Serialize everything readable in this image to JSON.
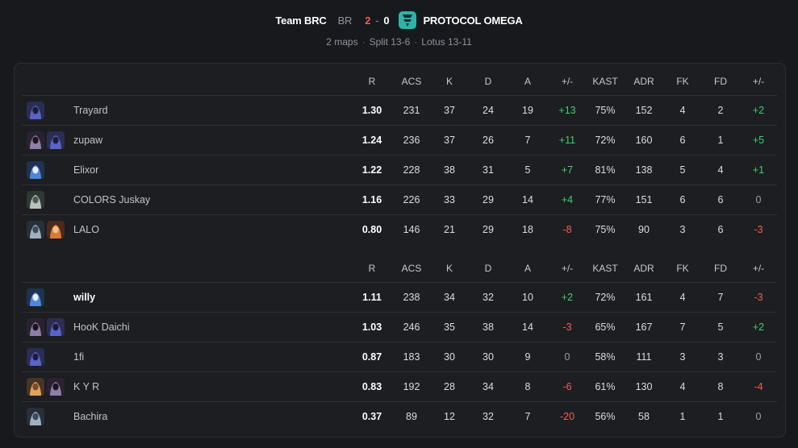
{
  "match": {
    "team_a": "Team BRC",
    "region": "BR",
    "score_a": "2",
    "dash": "-",
    "score_b": "0",
    "team_b": "PROTOCOL OMEGA",
    "team_b_logo_icon": "protocol-omega-logo",
    "maps_count": "2 maps",
    "separator": "·",
    "map1": "Split 13-6",
    "map2": "Lotus 13-11"
  },
  "columns": [
    "R",
    "ACS",
    "K",
    "D",
    "A",
    "+/-",
    "KAST",
    "ADR",
    "FK",
    "FD",
    "+/-"
  ],
  "colors": {
    "positive": "#3fcf6e",
    "negative": "#ff5a4e",
    "neutral": "#9a9ea6",
    "accent_logo": "#2fb3a7"
  },
  "team1": [
    {
      "name": "Trayard",
      "agents": [
        "omen-agent-icon"
      ],
      "stats": [
        "1.30",
        "231",
        "37",
        "24",
        "19",
        "+13",
        "75%",
        "152",
        "4",
        "2",
        "+2"
      ]
    },
    {
      "name": "zupaw",
      "agents": [
        "reyna-agent-icon",
        "omen-agent-icon"
      ],
      "stats": [
        "1.24",
        "236",
        "37",
        "26",
        "7",
        "+11",
        "72%",
        "160",
        "6",
        "1",
        "+5"
      ]
    },
    {
      "name": "Elixor",
      "agents": [
        "jett-agent-icon"
      ],
      "stats": [
        "1.22",
        "228",
        "38",
        "31",
        "5",
        "+7",
        "81%",
        "138",
        "5",
        "4",
        "+1"
      ]
    },
    {
      "name": "COLORS Juskay",
      "agents": [
        "viper-agent-icon"
      ],
      "stats": [
        "1.16",
        "226",
        "33",
        "29",
        "14",
        "+4",
        "77%",
        "151",
        "6",
        "6",
        "0"
      ]
    },
    {
      "name": "LALO",
      "agents": [
        "sage-agent-icon",
        "phoenix-agent-icon"
      ],
      "stats": [
        "0.80",
        "146",
        "21",
        "29",
        "18",
        "-8",
        "75%",
        "90",
        "3",
        "6",
        "-3"
      ]
    }
  ],
  "team2": [
    {
      "name": "willy",
      "agents": [
        "jett-agent-icon"
      ],
      "stats": [
        "1.11",
        "238",
        "34",
        "32",
        "10",
        "+2",
        "72%",
        "161",
        "4",
        "7",
        "-3"
      ]
    },
    {
      "name": "HooK Daichi",
      "agents": [
        "reyna-agent-icon",
        "omen-agent-icon"
      ],
      "stats": [
        "1.03",
        "246",
        "35",
        "38",
        "14",
        "-3",
        "65%",
        "167",
        "7",
        "5",
        "+2"
      ]
    },
    {
      "name": "1fi",
      "agents": [
        "omen-agent-icon"
      ],
      "stats": [
        "0.87",
        "183",
        "30",
        "30",
        "9",
        "0",
        "58%",
        "111",
        "3",
        "3",
        "0"
      ]
    },
    {
      "name": "K Y R",
      "agents": [
        "raze-agent-icon",
        "reyna-agent-icon"
      ],
      "stats": [
        "0.83",
        "192",
        "28",
        "34",
        "8",
        "-6",
        "61%",
        "130",
        "4",
        "8",
        "-4"
      ]
    },
    {
      "name": "Bachira",
      "agents": [
        "sage-agent-icon"
      ],
      "stats": [
        "0.37",
        "89",
        "12",
        "32",
        "7",
        "-20",
        "56%",
        "58",
        "1",
        "1",
        "0"
      ]
    }
  ]
}
